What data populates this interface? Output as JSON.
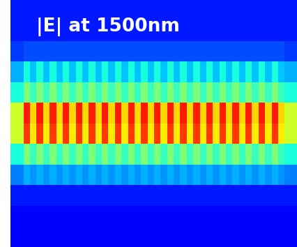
{
  "chart_data": {
    "type": "heatmap",
    "title": "|E| at 1500nm",
    "color": "jet",
    "tick_labels": false,
    "color_range": [
      0,
      1
    ],
    "cells": [
      [
        0.15,
        0.15,
        0.15,
        0.15,
        0.15,
        0.15,
        0.15,
        0.15,
        0.15,
        0.15,
        0.15,
        0.15,
        0.15,
        0.15,
        0.15,
        0.15,
        0.15,
        0.15,
        0.15,
        0.15,
        0.15,
        0.15,
        0.15,
        0.15,
        0.15,
        0.15,
        0.15,
        0.15,
        0.15,
        0.15,
        0.15,
        0.15,
        0.15,
        0.15,
        0.15,
        0.15,
        0.15,
        0.15,
        0.15,
        0.15,
        0.15,
        0.15,
        0.15,
        0.15
      ],
      [
        0.15,
        0.15,
        0.15,
        0.15,
        0.15,
        0.15,
        0.15,
        0.15,
        0.15,
        0.15,
        0.15,
        0.15,
        0.15,
        0.15,
        0.15,
        0.15,
        0.15,
        0.15,
        0.15,
        0.15,
        0.15,
        0.15,
        0.15,
        0.15,
        0.15,
        0.15,
        0.15,
        0.15,
        0.15,
        0.15,
        0.15,
        0.15,
        0.15,
        0.15,
        0.15,
        0.15,
        0.15,
        0.15,
        0.15,
        0.15,
        0.15,
        0.15,
        0.15,
        0.15
      ],
      [
        0.18,
        0.18,
        0.2,
        0.2,
        0.2,
        0.2,
        0.2,
        0.2,
        0.2,
        0.2,
        0.2,
        0.2,
        0.2,
        0.2,
        0.2,
        0.2,
        0.2,
        0.2,
        0.2,
        0.2,
        0.2,
        0.2,
        0.2,
        0.2,
        0.2,
        0.2,
        0.2,
        0.2,
        0.2,
        0.2,
        0.2,
        0.2,
        0.2,
        0.2,
        0.2,
        0.2,
        0.2,
        0.2,
        0.2,
        0.2,
        0.2,
        0.2,
        0.18,
        0.18
      ],
      [
        0.3,
        0.3,
        0.38,
        0.32,
        0.38,
        0.32,
        0.38,
        0.32,
        0.38,
        0.32,
        0.38,
        0.32,
        0.38,
        0.32,
        0.38,
        0.32,
        0.38,
        0.32,
        0.38,
        0.32,
        0.38,
        0.32,
        0.38,
        0.32,
        0.38,
        0.32,
        0.38,
        0.32,
        0.38,
        0.32,
        0.38,
        0.32,
        0.38,
        0.32,
        0.38,
        0.32,
        0.38,
        0.32,
        0.38,
        0.32,
        0.38,
        0.32,
        0.3,
        0.3
      ],
      [
        0.38,
        0.38,
        0.5,
        0.42,
        0.5,
        0.42,
        0.5,
        0.42,
        0.5,
        0.42,
        0.5,
        0.42,
        0.5,
        0.42,
        0.5,
        0.42,
        0.5,
        0.42,
        0.5,
        0.42,
        0.5,
        0.42,
        0.5,
        0.42,
        0.5,
        0.42,
        0.5,
        0.42,
        0.5,
        0.42,
        0.5,
        0.42,
        0.5,
        0.42,
        0.5,
        0.42,
        0.5,
        0.42,
        0.5,
        0.42,
        0.5,
        0.42,
        0.38,
        0.38
      ],
      [
        0.6,
        0.6,
        0.88,
        0.68,
        0.88,
        0.68,
        0.88,
        0.68,
        0.88,
        0.68,
        0.88,
        0.68,
        0.88,
        0.68,
        0.88,
        0.68,
        0.88,
        0.68,
        0.88,
        0.68,
        0.88,
        0.68,
        0.88,
        0.68,
        0.88,
        0.68,
        0.88,
        0.68,
        0.88,
        0.68,
        0.88,
        0.68,
        0.88,
        0.68,
        0.88,
        0.68,
        0.88,
        0.68,
        0.88,
        0.68,
        0.88,
        0.68,
        0.6,
        0.6
      ],
      [
        0.6,
        0.6,
        0.85,
        0.66,
        0.85,
        0.66,
        0.85,
        0.66,
        0.85,
        0.66,
        0.85,
        0.66,
        0.85,
        0.66,
        0.85,
        0.66,
        0.85,
        0.66,
        0.85,
        0.66,
        0.85,
        0.66,
        0.85,
        0.66,
        0.85,
        0.66,
        0.85,
        0.66,
        0.85,
        0.66,
        0.85,
        0.66,
        0.85,
        0.66,
        0.85,
        0.66,
        0.85,
        0.66,
        0.85,
        0.66,
        0.85,
        0.66,
        0.6,
        0.6
      ],
      [
        0.38,
        0.38,
        0.5,
        0.42,
        0.5,
        0.42,
        0.5,
        0.42,
        0.5,
        0.42,
        0.5,
        0.42,
        0.5,
        0.42,
        0.5,
        0.42,
        0.5,
        0.42,
        0.5,
        0.42,
        0.5,
        0.42,
        0.5,
        0.42,
        0.5,
        0.42,
        0.5,
        0.42,
        0.5,
        0.42,
        0.5,
        0.42,
        0.5,
        0.42,
        0.5,
        0.42,
        0.5,
        0.42,
        0.5,
        0.42,
        0.5,
        0.42,
        0.38,
        0.38
      ],
      [
        0.25,
        0.25,
        0.3,
        0.27,
        0.3,
        0.27,
        0.3,
        0.27,
        0.3,
        0.27,
        0.3,
        0.27,
        0.3,
        0.27,
        0.3,
        0.27,
        0.3,
        0.27,
        0.3,
        0.27,
        0.3,
        0.27,
        0.3,
        0.27,
        0.3,
        0.27,
        0.3,
        0.27,
        0.3,
        0.27,
        0.3,
        0.27,
        0.3,
        0.27,
        0.3,
        0.27,
        0.3,
        0.27,
        0.3,
        0.27,
        0.3,
        0.27,
        0.25,
        0.25
      ],
      [
        0.15,
        0.15,
        0.15,
        0.15,
        0.15,
        0.15,
        0.15,
        0.15,
        0.15,
        0.15,
        0.15,
        0.15,
        0.15,
        0.15,
        0.15,
        0.15,
        0.15,
        0.15,
        0.15,
        0.15,
        0.15,
        0.15,
        0.15,
        0.15,
        0.15,
        0.15,
        0.15,
        0.15,
        0.15,
        0.15,
        0.15,
        0.15,
        0.15,
        0.15,
        0.15,
        0.15,
        0.15,
        0.15,
        0.15,
        0.15,
        0.15,
        0.15,
        0.15,
        0.15
      ],
      [
        0.12,
        0.12,
        0.12,
        0.12,
        0.12,
        0.12,
        0.12,
        0.12,
        0.12,
        0.12,
        0.12,
        0.12,
        0.12,
        0.12,
        0.12,
        0.12,
        0.12,
        0.12,
        0.12,
        0.12,
        0.12,
        0.12,
        0.12,
        0.12,
        0.12,
        0.12,
        0.12,
        0.12,
        0.12,
        0.12,
        0.12,
        0.12,
        0.12,
        0.12,
        0.12,
        0.12,
        0.12,
        0.12,
        0.12,
        0.12,
        0.12,
        0.12,
        0.12,
        0.12
      ],
      [
        0.12,
        0.12,
        0.12,
        0.12,
        0.12,
        0.12,
        0.12,
        0.12,
        0.12,
        0.12,
        0.12,
        0.12,
        0.12,
        0.12,
        0.12,
        0.12,
        0.12,
        0.12,
        0.12,
        0.12,
        0.12,
        0.12,
        0.12,
        0.12,
        0.12,
        0.12,
        0.12,
        0.12,
        0.12,
        0.12,
        0.12,
        0.12,
        0.12,
        0.12,
        0.12,
        0.12,
        0.12,
        0.12,
        0.12,
        0.12,
        0.12,
        0.12,
        0.12,
        0.12
      ]
    ]
  }
}
